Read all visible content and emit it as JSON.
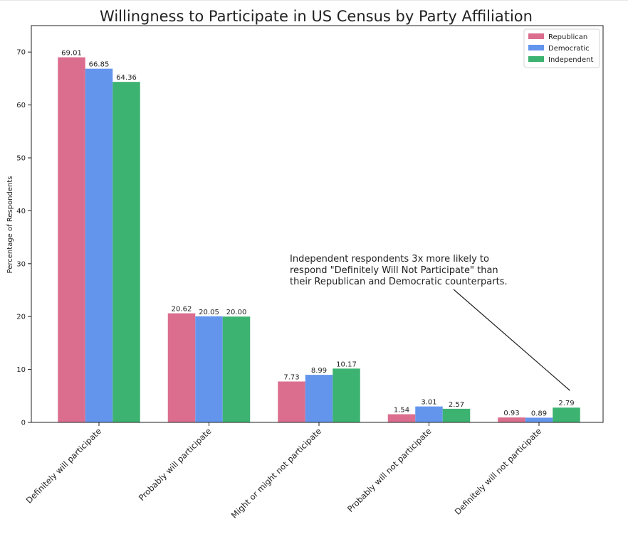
{
  "chart_data": {
    "type": "bar",
    "title": "Willingness to Participate in US Census by Party Affiliation",
    "xlabel": "",
    "ylabel": "Percentage of Respondents",
    "ylim": [
      0,
      75
    ],
    "yticks": [
      0,
      10,
      20,
      30,
      40,
      50,
      60,
      70
    ],
    "grid": false,
    "legend_position": "top-right",
    "categories": [
      "Definitely will participate",
      "Probably will participate",
      "Might or might not participate",
      "Probably will not participate",
      "Definitely will not participate"
    ],
    "series": [
      {
        "name": "Republican",
        "color": "#DB6E8E",
        "values": [
          69.01,
          20.62,
          7.73,
          1.54,
          0.93
        ]
      },
      {
        "name": "Democratic",
        "color": "#6495ED",
        "values": [
          66.85,
          20.05,
          8.99,
          3.01,
          0.89
        ]
      },
      {
        "name": "Independent",
        "color": "#3CB371",
        "values": [
          64.36,
          20.0,
          10.17,
          2.57,
          2.79
        ]
      }
    ],
    "annotation": {
      "lines": [
        "Independent respondents 3x more likely to",
        "respond \"Definitely Will Not Participate\" than",
        "their Republican and Democratic counterparts."
      ],
      "points_to": {
        "category_index": 4,
        "series_index": 2
      }
    }
  }
}
